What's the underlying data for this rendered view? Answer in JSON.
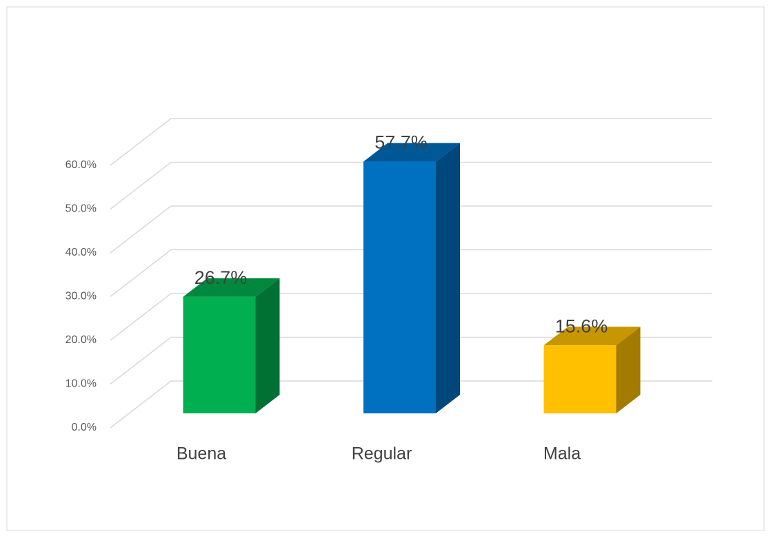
{
  "chart_data": {
    "type": "bar3d",
    "categories": [
      "Buena",
      "Regular",
      "Mala"
    ],
    "values": [
      26.7,
      57.7,
      15.6
    ],
    "value_labels": [
      "26.7%",
      "57.7%",
      "15.6%"
    ],
    "colors": [
      "#00b050",
      "#0070c0",
      "#ffc000"
    ],
    "ylim": [
      0,
      60
    ],
    "yticks": [
      {
        "value": 0,
        "label": "0.0%"
      },
      {
        "value": 10,
        "label": "10.0%"
      },
      {
        "value": 20,
        "label": "20.0%"
      },
      {
        "value": 30,
        "label": "30.0%"
      },
      {
        "value": 40,
        "label": "40.0%"
      },
      {
        "value": 50,
        "label": "50.0%"
      },
      {
        "value": 60,
        "label": "60.0%"
      }
    ],
    "grid": true
  }
}
